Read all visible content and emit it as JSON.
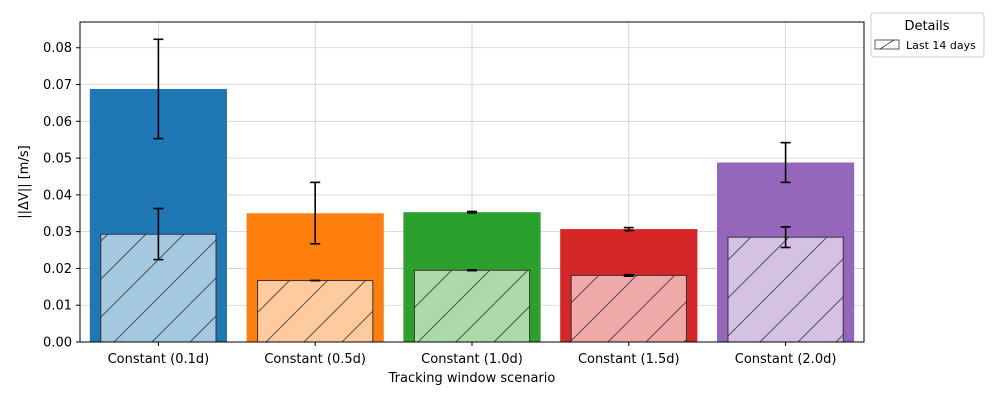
{
  "chart_data": {
    "type": "bar",
    "xlabel": "Tracking window scenario",
    "ylabel": "||ΔV|| [m/s]",
    "ylim": [
      0,
      0.087
    ],
    "yticks": [
      "0.00",
      "0.01",
      "0.02",
      "0.03",
      "0.04",
      "0.05",
      "0.06",
      "0.07",
      "0.08"
    ],
    "grid": true,
    "categories": [
      "Constant (0.1d)",
      "Constant (0.5d)",
      "Constant (1.0d)",
      "Constant (1.5d)",
      "Constant (2.0d)"
    ],
    "colors": [
      "#1f77b4",
      "#ff7f0e",
      "#2ca02c",
      "#d62728",
      "#9467bd"
    ],
    "light_colors": [
      "#a5c8e1",
      "#ffcb9e",
      "#abd9a8",
      "#efa9a9",
      "#d4c1e4"
    ],
    "series": [
      {
        "values": [
          0.0688,
          0.035,
          0.0353,
          0.0307,
          0.0488
        ],
        "err_low": [
          0.0553,
          0.0267,
          0.0351,
          0.0303,
          0.0434
        ],
        "err_high": [
          0.0823,
          0.0434,
          0.0355,
          0.0311,
          0.0542
        ]
      },
      {
        "name": "Last 14 days",
        "hatch": "/",
        "values": [
          0.0293,
          0.0167,
          0.0195,
          0.0181,
          0.0285
        ],
        "err_low": [
          0.0224,
          0.0167,
          0.0194,
          0.0179,
          0.0257
        ],
        "err_high": [
          0.0363,
          0.0167,
          0.0196,
          0.0183,
          0.0313
        ]
      }
    ],
    "legend": {
      "title": "Details",
      "placement": "outside-top-right"
    }
  }
}
